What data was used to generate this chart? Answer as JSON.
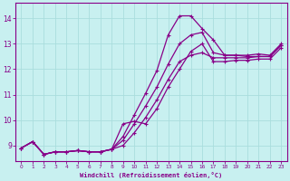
{
  "xlabel": "Windchill (Refroidissement éolien,°C)",
  "xlim": [
    -0.5,
    23.5
  ],
  "ylim": [
    8.4,
    14.6
  ],
  "yticks": [
    9,
    10,
    11,
    12,
    13,
    14
  ],
  "xticks": [
    0,
    1,
    2,
    3,
    4,
    5,
    6,
    7,
    8,
    9,
    10,
    11,
    12,
    13,
    14,
    15,
    16,
    17,
    18,
    19,
    20,
    21,
    22,
    23
  ],
  "bg_color": "#c8f0f0",
  "line_color": "#880088",
  "grid_color": "#aadddd",
  "line1_x": [
    0,
    1,
    2,
    3,
    4,
    5,
    6,
    7,
    8,
    9,
    10,
    11,
    12,
    13,
    14,
    15,
    16,
    17,
    18,
    19,
    20,
    21,
    22,
    23
  ],
  "line1_y": [
    8.9,
    9.15,
    8.65,
    8.75,
    8.75,
    8.8,
    8.75,
    8.75,
    8.85,
    9.0,
    9.5,
    10.1,
    10.8,
    11.6,
    12.3,
    12.55,
    12.65,
    12.45,
    12.45,
    12.45,
    12.45,
    12.5,
    12.5,
    12.95
  ],
  "line2_x": [
    0,
    1,
    2,
    3,
    4,
    5,
    6,
    7,
    8,
    9,
    10,
    11,
    12,
    13,
    14,
    15,
    16,
    17,
    18,
    19,
    20,
    21,
    22,
    23
  ],
  "line2_y": [
    8.9,
    9.15,
    8.65,
    8.75,
    8.75,
    8.8,
    8.75,
    8.75,
    8.85,
    9.35,
    10.2,
    11.05,
    11.95,
    13.35,
    14.1,
    14.1,
    13.6,
    13.15,
    12.55,
    12.55,
    12.55,
    12.6,
    12.55,
    13.0
  ],
  "line3_x": [
    0,
    1,
    2,
    3,
    4,
    5,
    6,
    7,
    8,
    9,
    10,
    11,
    12,
    13,
    14,
    15,
    16,
    17,
    18,
    19,
    20,
    21,
    22,
    23
  ],
  "line3_y": [
    8.9,
    9.15,
    8.65,
    8.75,
    8.75,
    8.8,
    8.75,
    8.75,
    8.85,
    9.2,
    9.85,
    10.55,
    11.3,
    12.2,
    13.0,
    13.35,
    13.45,
    12.65,
    12.55,
    12.55,
    12.5,
    12.5,
    12.5,
    12.95
  ],
  "line4_x": [
    0,
    1,
    2,
    3,
    4,
    5,
    6,
    7,
    8,
    9,
    10,
    11,
    12,
    13,
    14,
    15,
    16,
    17,
    18,
    19,
    20,
    21,
    22,
    23
  ],
  "line4_y": [
    8.9,
    9.15,
    8.65,
    8.75,
    8.75,
    8.8,
    8.75,
    8.75,
    8.85,
    9.85,
    9.95,
    9.85,
    10.45,
    11.3,
    12.0,
    12.7,
    13.0,
    12.3,
    12.3,
    12.35,
    12.35,
    12.4,
    12.4,
    12.85
  ]
}
